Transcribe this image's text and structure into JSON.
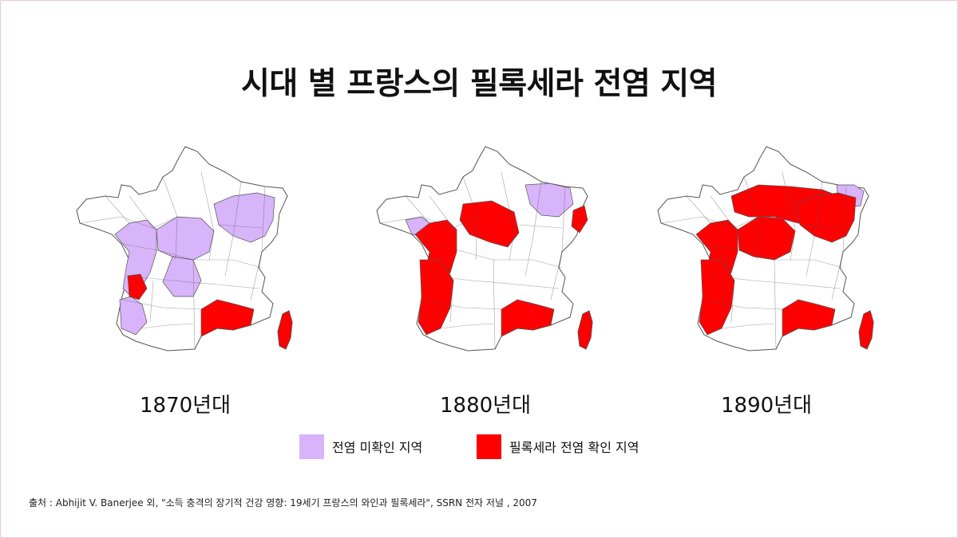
{
  "title": "시대 별 프랑스의 필록세라 전염 지역",
  "colors": {
    "uninfected": "#d8b4fa",
    "infected": "#ff0000",
    "outline": "#555555"
  },
  "maps": [
    {
      "decade": "1870년대",
      "status": "light",
      "regions": {
        "purple": [
          "west",
          "center",
          "east",
          "southwest_coast",
          "mid_south"
        ],
        "red": [
          "bordeaux",
          "provence",
          "corsica"
        ]
      }
    },
    {
      "decade": "1880년대",
      "status": "mid",
      "regions": {
        "purple": [
          "brittany_edge",
          "northeast"
        ],
        "red": [
          "west",
          "southwest",
          "center_north",
          "provence",
          "corsica",
          "alsace"
        ]
      }
    },
    {
      "decade": "1890년대",
      "status": "heavy",
      "regions": {
        "purple": [
          "alsace_north"
        ],
        "red": [
          "west",
          "southwest",
          "north",
          "center",
          "east",
          "provence",
          "corsica"
        ]
      }
    }
  ],
  "legend": [
    {
      "label": "전염 미확인 지역",
      "color_key": "uninfected"
    },
    {
      "label": "필록세라 전염 확인 지역",
      "color_key": "infected"
    }
  ],
  "source": "출처 : Abhijit V. Banerjee 외, \"소득 충격의 장기적 건강 영향: 19세기 프랑스의 와인과 필록세라\", SSRN 전자 저널 , 2007"
}
